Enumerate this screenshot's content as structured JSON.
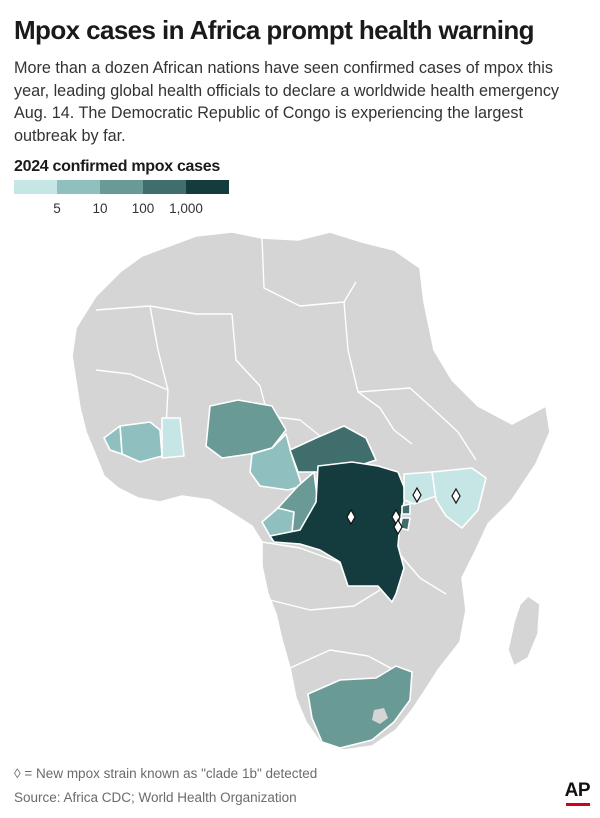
{
  "headline": "Mpox cases in Africa prompt health warning",
  "deck": "More than a dozen African nations have seen confirmed cases of mpox this year, leading global health officials to declare a worldwide health emergency Aug. 14. The Democratic Republic of Congo is experiencing the largest outbreak by far.",
  "legend": {
    "title": "2024 confirmed mpox cases",
    "colors": [
      "#c6e6e6",
      "#8fc0bf",
      "#6a9a96",
      "#3f6e6d",
      "#143b3d"
    ],
    "ticks": [
      "5",
      "10",
      "100",
      "1,000"
    ]
  },
  "map": {
    "base_color": "#d5d5d5",
    "border_color": "#ffffff",
    "regions": [
      {
        "name": "Ivory Coast",
        "class": 1
      },
      {
        "name": "Liberia",
        "class": 1
      },
      {
        "name": "Ghana",
        "class": 0
      },
      {
        "name": "Nigeria",
        "class": 2
      },
      {
        "name": "Cameroon",
        "class": 1
      },
      {
        "name": "Central African Republic",
        "class": 3
      },
      {
        "name": "Congo",
        "class": 2
      },
      {
        "name": "Gabon",
        "class": 1
      },
      {
        "name": "Democratic Republic of Congo",
        "class": 4
      },
      {
        "name": "Rwanda",
        "class": 3
      },
      {
        "name": "Burundi",
        "class": 3
      },
      {
        "name": "Uganda",
        "class": 0
      },
      {
        "name": "Kenya",
        "class": 0
      },
      {
        "name": "South Africa",
        "class": 2
      }
    ]
  },
  "footnote": "◊ = New mpox strain known as \"clade 1b\" detected",
  "source": "Source: Africa CDC; World Health Organization",
  "credit": "AP"
}
